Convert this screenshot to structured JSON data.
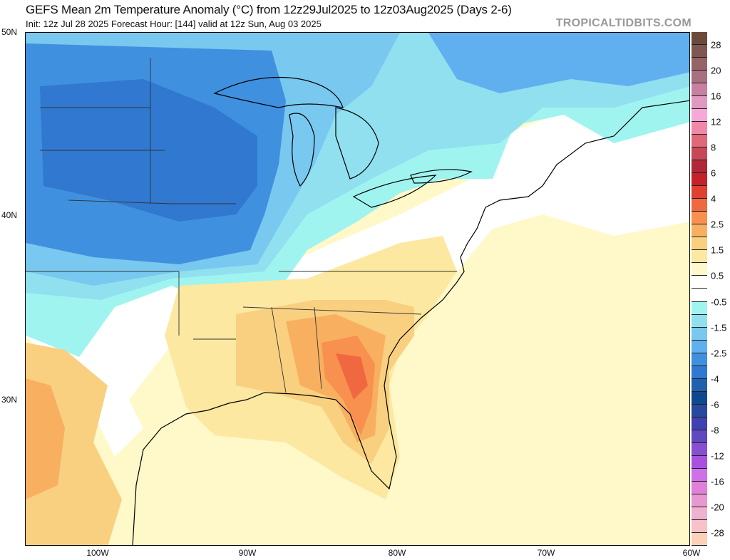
{
  "header": {
    "title": "GEFS Mean 2m Temperature Anomaly (°C) from 12z29Jul2025 to 12z03Aug2025 (Days 2-6)",
    "subtitle": "Init: 12z Jul 28 2025   Forecast Hour: [144]   valid at 12z Sun, Aug 03 2025",
    "brand": "TROPICALTIDBITS.COM"
  },
  "axes": {
    "lat_labels": [
      "50N",
      "40N",
      "30N"
    ],
    "lon_labels": [
      "100W",
      "90W",
      "80W",
      "70W",
      "60W"
    ]
  },
  "colorbar": {
    "labels": [
      "28",
      "20",
      "16",
      "12",
      "8",
      "6",
      "4",
      "2.5",
      "1.5",
      "0.5",
      "-0.5",
      "-1.5",
      "-2.5",
      "-4",
      "-6",
      "-8",
      "-12",
      "-16",
      "-20",
      "-28"
    ],
    "colors": [
      "#6b4a3a",
      "#7d5750",
      "#956467",
      "#a87080",
      "#c87fa0",
      "#e09ac0",
      "#f8a8d8",
      "#f088a8",
      "#e06878",
      "#c84858",
      "#b02838",
      "#c82028",
      "#e04030",
      "#f06840",
      "#f89050",
      "#f8b060",
      "#f8d080",
      "#fce8a0",
      "#fff8c8",
      "#ffffff",
      "#ffffff",
      "#a0f4f0",
      "#90e0f0",
      "#78c8f0",
      "#60b0f0",
      "#4090e0",
      "#3078d0",
      "#2060b0",
      "#104890",
      "#2848a0",
      "#4040b0",
      "#6048c0",
      "#8850d0",
      "#a850e0",
      "#d070e8",
      "#e080d8",
      "#e898d0",
      "#f0b0d0",
      "#f8c0c8",
      "#ffd0b8"
    ]
  }
}
